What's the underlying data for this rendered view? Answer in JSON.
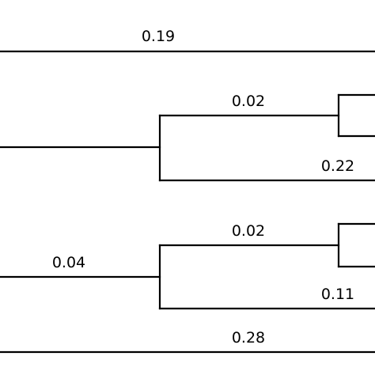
{
  "tree": {
    "line_color": "#000000",
    "background": "#ffffff",
    "branch_labels": {
      "top_branch": "0.19",
      "clade_a_upper": "0.02",
      "clade_a_lower": "0.22",
      "clade_b_stem": "0.04",
      "clade_b_upper": "0.02",
      "clade_b_lower": "0.11",
      "bottom_branch": "0.28"
    }
  }
}
